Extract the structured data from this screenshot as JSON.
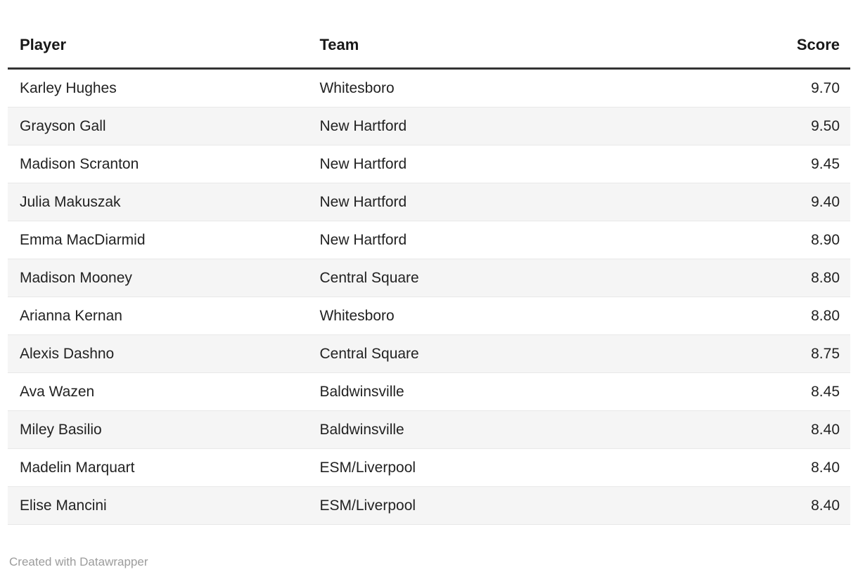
{
  "chart_data": {
    "type": "table",
    "columns": [
      {
        "key": "player",
        "label": "Player",
        "align": "left"
      },
      {
        "key": "team",
        "label": "Team",
        "align": "left"
      },
      {
        "key": "score",
        "label": "Score",
        "align": "right"
      }
    ],
    "rows": [
      {
        "player": "Karley Hughes",
        "team": "Whitesboro",
        "score": "9.70"
      },
      {
        "player": "Grayson Gall",
        "team": "New Hartford",
        "score": "9.50"
      },
      {
        "player": "Madison Scranton",
        "team": "New Hartford",
        "score": "9.45"
      },
      {
        "player": "Julia Makuszak",
        "team": "New Hartford",
        "score": "9.40"
      },
      {
        "player": "Emma MacDiarmid",
        "team": "New Hartford",
        "score": "8.90"
      },
      {
        "player": "Madison Mooney",
        "team": "Central Square",
        "score": "8.80"
      },
      {
        "player": "Arianna Kernan",
        "team": "Whitesboro",
        "score": "8.80"
      },
      {
        "player": "Alexis Dashno",
        "team": "Central Square",
        "score": "8.75"
      },
      {
        "player": "Ava Wazen",
        "team": "Baldwinsville",
        "score": "8.45"
      },
      {
        "player": "Miley Basilio",
        "team": "Baldwinsville",
        "score": "8.40"
      },
      {
        "player": "Madelin Marquart",
        "team": "ESM/Liverpool",
        "score": "8.40"
      },
      {
        "player": "Elise Mancini",
        "team": "ESM/Liverpool",
        "score": "8.40"
      }
    ],
    "title": "",
    "layout_hints": {
      "zebra_striping": true,
      "header_rule": true
    }
  },
  "footer": {
    "attribution": "Created with Datawrapper"
  },
  "colors": {
    "text": "#222222",
    "header_text": "#181818",
    "stripe": "#f5f5f5",
    "row_border": "#e8e8e8",
    "header_rule": "#333333",
    "footer_text": "#9c9c9c",
    "background": "#ffffff"
  }
}
